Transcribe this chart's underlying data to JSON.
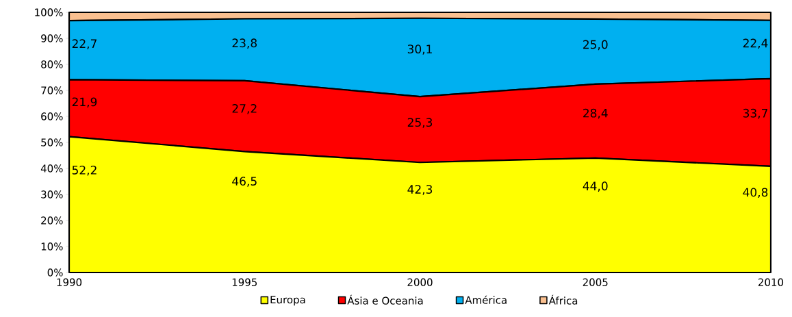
{
  "chart_data": {
    "type": "area",
    "stacked": true,
    "legend": "bottom",
    "x": [
      1990,
      1995,
      2000,
      2005,
      2010
    ],
    "xlim": [
      1990,
      2010
    ],
    "xticks": [
      1990,
      1995,
      2000,
      2005,
      2010
    ],
    "ylim": [
      0,
      100
    ],
    "yticks": [
      {
        "value": 0,
        "label": "0%"
      },
      {
        "value": 10,
        "label": "10%"
      },
      {
        "value": 20,
        "label": "20%"
      },
      {
        "value": 30,
        "label": "30%"
      },
      {
        "value": 40,
        "label": "40%"
      },
      {
        "value": 50,
        "label": "50%"
      },
      {
        "value": 60,
        "label": "60%"
      },
      {
        "value": 70,
        "label": "70%"
      },
      {
        "value": 80,
        "label": "80%"
      },
      {
        "value": 90,
        "label": "90%"
      },
      {
        "value": 100,
        "label": "100%"
      }
    ],
    "series": [
      {
        "name": "Europa",
        "color": "#ffff00",
        "values": [
          52.2,
          46.5,
          42.3,
          44.0,
          40.8
        ],
        "value_labels": [
          "52,2",
          "46,5",
          "42,3",
          "44,0",
          "40,8"
        ]
      },
      {
        "name": "Ásia e Oceania",
        "color": "#ff0000",
        "values": [
          21.9,
          27.2,
          25.3,
          28.4,
          33.7
        ],
        "value_labels": [
          "21,9",
          "27,2",
          "25,3",
          "28,4",
          "33,7"
        ]
      },
      {
        "name": "América",
        "color": "#00b0f0",
        "values": [
          22.7,
          23.8,
          30.1,
          25.0,
          22.4
        ],
        "value_labels": [
          "22,7",
          "23,8",
          "30,1",
          "25,0",
          "22,4"
        ]
      },
      {
        "name": "África",
        "color": "#fac090",
        "values": [
          3.2,
          2.5,
          2.3,
          2.6,
          3.1
        ]
      }
    ]
  }
}
